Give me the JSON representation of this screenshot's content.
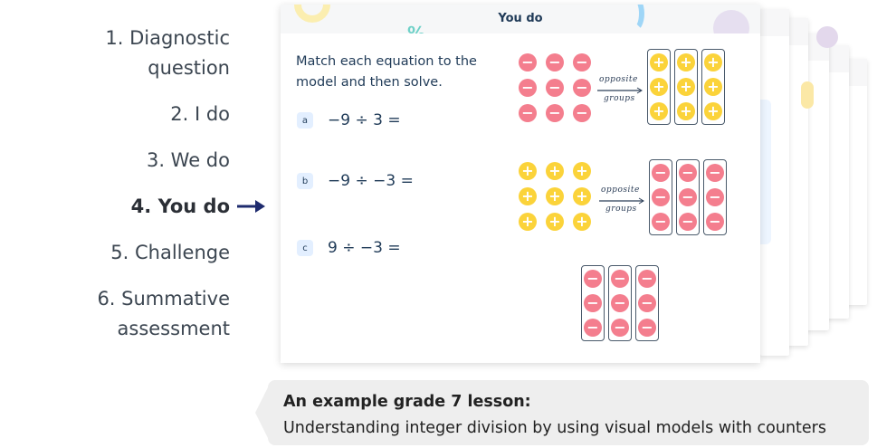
{
  "steps": [
    {
      "label": "1. Diagnostic\nquestion",
      "lines": [
        "1. Diagnostic",
        "question"
      ],
      "active": false
    },
    {
      "lines": [
        "2. I do"
      ],
      "active": false
    },
    {
      "lines": [
        "3. We do"
      ],
      "active": false
    },
    {
      "lines": [
        "4. You do"
      ],
      "active": true
    },
    {
      "lines": [
        "5. Challenge"
      ],
      "active": false
    },
    {
      "lines": [
        "6. Summative",
        "assessment"
      ],
      "active": false
    }
  ],
  "card": {
    "title": "You do",
    "instruction": "Match each equation to the model and then solve.",
    "equations": [
      {
        "badge": "a",
        "text": "−9 ÷ 3 ="
      },
      {
        "badge": "b",
        "text": "−9 ÷ −3 ="
      },
      {
        "badge": "c",
        "text": "9 ÷ −3 ="
      }
    ],
    "models": [
      {
        "counters": "negative",
        "groups": "positive",
        "label_top": "opposite",
        "label_bottom": "groups"
      },
      {
        "counters": "positive",
        "groups": "negative",
        "label_top": "opposite",
        "label_bottom": "groups"
      },
      {
        "groups": "negative"
      }
    ]
  },
  "caption": {
    "title": "An example grade 7 lesson:",
    "subtitle": "Understanding integer division by using visual models with counters"
  },
  "colors": {
    "negative": "#f47e8e",
    "positive": "#fbd33a",
    "text": "#1f3a57",
    "arrow": "#1e2b6e"
  }
}
